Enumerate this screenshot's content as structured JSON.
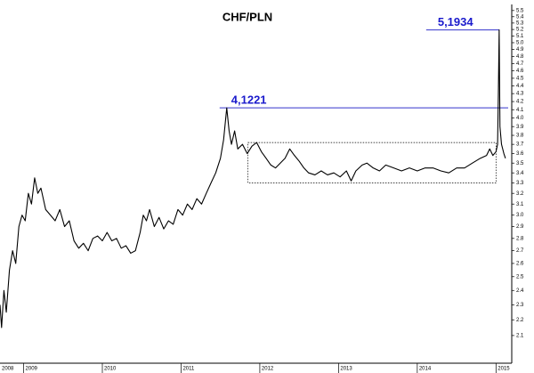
{
  "chart_data": {
    "type": "line",
    "title": "CHF/PLN",
    "color": "#000000",
    "log_scale": true,
    "xlim": [
      2008.7,
      2015.2
    ],
    "ylim": [
      1.95,
      5.6
    ],
    "xticks": [
      2008,
      2009,
      2010,
      2011,
      2012,
      2013,
      2014,
      2015
    ],
    "yticks": [
      2.1,
      2.2,
      2.3,
      2.4,
      2.5,
      2.6,
      2.7,
      2.8,
      2.9,
      {
        "value": 3,
        "label": "3.0"
      },
      3.1,
      3.2,
      3.3,
      3.4,
      3.5,
      3.6,
      3.7,
      3.8,
      3.9,
      {
        "value": 4,
        "label": "4.0"
      },
      4.1,
      4.2,
      4.3,
      4.4,
      4.5,
      4.6,
      4.7,
      4.8,
      4.9,
      {
        "value": 5,
        "label": "5.0"
      },
      5.1,
      5.2,
      5.3,
      5.4,
      5.5
    ],
    "x": [
      2008.7,
      2008.72,
      2008.75,
      2008.78,
      2008.82,
      2008.86,
      2008.9,
      2008.94,
      2008.98,
      2009.02,
      2009.06,
      2009.1,
      2009.14,
      2009.18,
      2009.22,
      2009.28,
      2009.34,
      2009.4,
      2009.46,
      2009.52,
      2009.58,
      2009.64,
      2009.7,
      2009.76,
      2009.82,
      2009.88,
      2009.94,
      2010.0,
      2010.06,
      2010.12,
      2010.18,
      2010.24,
      2010.3,
      2010.36,
      2010.42,
      2010.48,
      2010.52,
      2010.56,
      2010.6,
      2010.66,
      2010.72,
      2010.78,
      2010.84,
      2010.9,
      2010.96,
      2011.02,
      2011.08,
      2011.14,
      2011.2,
      2011.26,
      2011.32,
      2011.38,
      2011.44,
      2011.5,
      2011.54,
      2011.58,
      2011.61,
      2011.64,
      2011.68,
      2011.72,
      2011.78,
      2011.84,
      2011.9,
      2011.96,
      2012.02,
      2012.08,
      2012.14,
      2012.2,
      2012.26,
      2012.32,
      2012.38,
      2012.44,
      2012.5,
      2012.56,
      2012.62,
      2012.7,
      2012.78,
      2012.86,
      2012.94,
      2013.02,
      2013.1,
      2013.16,
      2013.22,
      2013.3,
      2013.36,
      2013.44,
      2013.52,
      2013.6,
      2013.7,
      2013.8,
      2013.9,
      2014.0,
      2014.1,
      2014.2,
      2014.3,
      2014.4,
      2014.5,
      2014.6,
      2014.7,
      2014.8,
      2014.88,
      2014.92,
      2014.96,
      2015.0,
      2015.02,
      2015.03,
      2015.04,
      2015.05,
      2015.07,
      2015.1,
      2015.12
    ],
    "values": [
      2.3,
      2.15,
      2.4,
      2.25,
      2.55,
      2.7,
      2.6,
      2.9,
      3.0,
      2.95,
      3.2,
      3.1,
      3.35,
      3.2,
      3.25,
      3.05,
      3.0,
      2.95,
      3.05,
      2.9,
      2.95,
      2.78,
      2.72,
      2.76,
      2.7,
      2.8,
      2.82,
      2.78,
      2.85,
      2.78,
      2.8,
      2.72,
      2.74,
      2.68,
      2.7,
      2.85,
      3.0,
      2.95,
      3.05,
      2.9,
      2.98,
      2.88,
      2.95,
      2.92,
      3.05,
      3.0,
      3.1,
      3.05,
      3.15,
      3.1,
      3.2,
      3.3,
      3.4,
      3.55,
      3.75,
      4.1221,
      3.85,
      3.7,
      3.85,
      3.65,
      3.7,
      3.6,
      3.68,
      3.72,
      3.62,
      3.55,
      3.48,
      3.45,
      3.5,
      3.55,
      3.65,
      3.58,
      3.52,
      3.45,
      3.4,
      3.38,
      3.42,
      3.38,
      3.4,
      3.36,
      3.42,
      3.32,
      3.42,
      3.48,
      3.5,
      3.45,
      3.42,
      3.48,
      3.45,
      3.42,
      3.45,
      3.42,
      3.45,
      3.45,
      3.42,
      3.4,
      3.45,
      3.45,
      3.5,
      3.55,
      3.58,
      3.65,
      3.58,
      3.62,
      3.7,
      4.3,
      5.1934,
      3.9,
      3.7,
      3.6,
      3.55
    ],
    "annotations": [
      {
        "label": "4,1221",
        "value": 4.1221,
        "x": 2011.58
      },
      {
        "label": "5,1934",
        "value": 5.1934,
        "x": 2015.04
      }
    ],
    "box": {
      "x": [
        2011.85,
        2015.0
      ],
      "y": [
        3.3,
        3.72
      ]
    }
  }
}
